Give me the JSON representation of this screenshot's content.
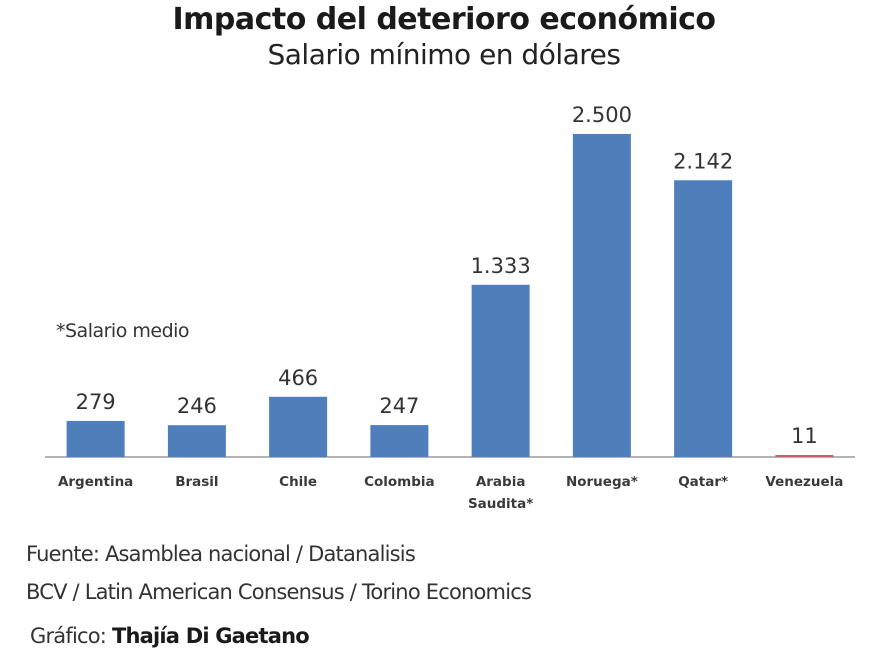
{
  "chart_data": {
    "type": "bar",
    "title": "Impacto del deterioro económico",
    "subtitle": "Salario mínimo en dólares",
    "annotation": "*Salario medio",
    "categories": [
      "Argentina",
      "Brasil",
      "Chile",
      "Colombia",
      "Arabia Saudita*",
      "Noruega*",
      "Qatar*",
      "Venezuela"
    ],
    "category_lines": [
      [
        "Argentina"
      ],
      [
        "Brasil"
      ],
      [
        "Chile"
      ],
      [
        "Colombia"
      ],
      [
        "Arabia",
        "Saudita*"
      ],
      [
        "Noruega*"
      ],
      [
        "Qatar*"
      ],
      [
        "Venezuela"
      ]
    ],
    "values": [
      279,
      246,
      466,
      247,
      1333,
      2500,
      2142,
      11
    ],
    "value_labels": [
      "279",
      "246",
      "466",
      "247",
      "1.333",
      "2.500",
      "2.142",
      "11"
    ],
    "bar_colors": [
      "#4e7fbb",
      "#4e7fbb",
      "#4e7fbb",
      "#4e7fbb",
      "#4e7fbb",
      "#4e7fbb",
      "#4e7fbb",
      "#c9606e"
    ],
    "ylim": [
      0,
      2500
    ],
    "xlabel": "",
    "ylabel": "",
    "grid": false
  },
  "footer": {
    "source_line1": "Fuente: Asamblea nacional / Datanalisis",
    "source_line2": "BCV / Latin American Consensus / Torino Economics",
    "credit_label": "Gráfico:",
    "credit_name": "Thajía Di Gaetano"
  }
}
